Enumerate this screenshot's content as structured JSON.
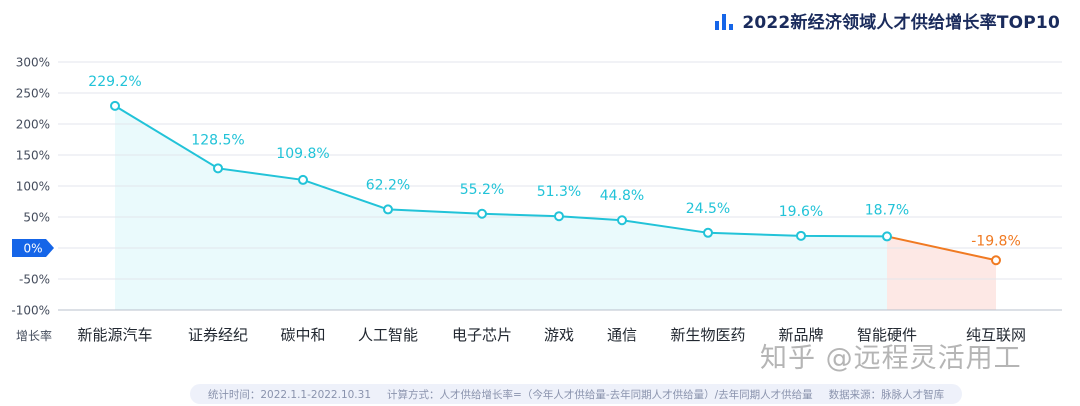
{
  "title": "2022新经济领域人才供给增长率TOP10",
  "chart_data": {
    "type": "line",
    "title": "2022新经济领域人才供给增长率TOP10",
    "xlabel": "增长率",
    "ylabel": "",
    "ylim": [
      -100,
      300
    ],
    "yticks": [
      "300%",
      "250%",
      "200%",
      "150%",
      "100%",
      "50%",
      "0%",
      "-50%",
      "-100%"
    ],
    "ytick_values": [
      300,
      250,
      200,
      150,
      100,
      50,
      0,
      -50,
      -100
    ],
    "categories": [
      "新能源汽车",
      "证券经纪",
      "碳中和",
      "人工智能",
      "电子芯片",
      "游戏",
      "通信",
      "新生物医药",
      "新品牌",
      "智能硬件",
      "纯互联网"
    ],
    "values": [
      229.2,
      128.5,
      109.8,
      62.2,
      55.2,
      51.3,
      44.8,
      24.5,
      19.6,
      18.7,
      -19.8
    ],
    "value_labels": [
      "229.2%",
      "128.5%",
      "109.8%",
      "62.2%",
      "55.2%",
      "51.3%",
      "44.8%",
      "24.5%",
      "19.6%",
      "18.7%",
      "-19.8%"
    ],
    "grid": true,
    "colors": {
      "positive": "#22c3d8",
      "negative": "#f07a22",
      "positive_fill": "#eafafc",
      "negative_fill": "#fde8e5",
      "zero_badge": "#1565e8"
    }
  },
  "footer": {
    "stat_period": "统计时间：2022.1.1-2022.10.31",
    "method": "计算方式：人才供给增长率=（今年人才供给量-去年同期人才供给量）/去年同期人才供给量",
    "source": "数据来源：脉脉人才智库"
  },
  "watermark": "知乎 @远程灵活用工"
}
